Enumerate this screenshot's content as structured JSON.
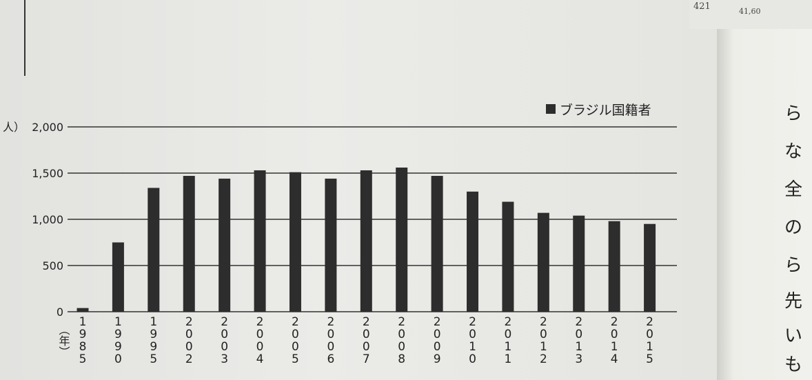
{
  "neighbor_page": {
    "top_numbers": [
      "421",
      "41,60"
    ],
    "visible_chars": [
      "ら",
      "な",
      "全",
      "の",
      "ら",
      "先",
      "い",
      "も"
    ]
  },
  "chart_data": {
    "type": "bar",
    "legend": "ブラジル国籍者",
    "legend_position": "top-right",
    "ylabel": "人）",
    "xlabel": "（年）",
    "ylim": [
      0,
      2000
    ],
    "yticks": [
      "0",
      "500",
      "1,000",
      "1,500",
      "2,000"
    ],
    "grid": true,
    "bar_color": "#2d2d2d",
    "categories": [
      "1985",
      "1990",
      "1995",
      "2002",
      "2003",
      "2004",
      "2005",
      "2006",
      "2007",
      "2008",
      "2009",
      "2010",
      "2011",
      "2012",
      "2013",
      "2014",
      "2015"
    ],
    "values": [
      40,
      750,
      1340,
      1470,
      1440,
      1530,
      1510,
      1440,
      1530,
      1560,
      1470,
      1300,
      1190,
      1070,
      1040,
      980,
      950
    ]
  }
}
